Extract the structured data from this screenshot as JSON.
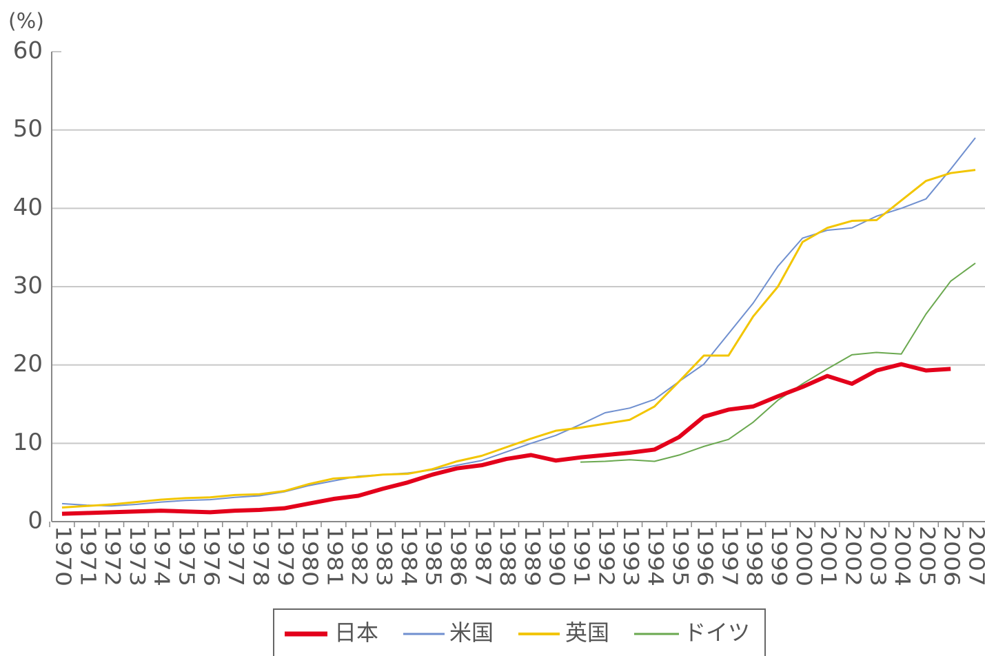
{
  "chart_data": {
    "type": "line",
    "y_label": "(%)",
    "categories": [
      "1970",
      "1971",
      "1972",
      "1973",
      "1974",
      "1975",
      "1976",
      "1977",
      "1978",
      "1979",
      "1980",
      "1981",
      "1982",
      "1983",
      "1984",
      "1985",
      "1986",
      "1987",
      "1988",
      "1989",
      "1990",
      "1991",
      "1992",
      "1993",
      "1994",
      "1995",
      "1996",
      "1997",
      "1998",
      "1999",
      "2000",
      "2001",
      "2002",
      "2003",
      "2004",
      "2005",
      "2006",
      "2007"
    ],
    "series": [
      {
        "name": "日本",
        "color": "#e3001b",
        "width": 6,
        "values": [
          1.0,
          1.1,
          1.2,
          1.3,
          1.4,
          1.3,
          1.2,
          1.4,
          1.5,
          1.7,
          2.3,
          2.9,
          3.3,
          4.2,
          5.0,
          6.0,
          6.8,
          7.2,
          8.0,
          8.5,
          7.8,
          8.2,
          8.5,
          8.8,
          9.2,
          10.8,
          13.4,
          14.3,
          14.7,
          16.0,
          17.2,
          18.6,
          17.6,
          19.3,
          20.1,
          19.3,
          19.5,
          null
        ]
      },
      {
        "name": "米国",
        "color": "#6f8fcf",
        "width": 2,
        "values": [
          2.3,
          2.1,
          2.0,
          2.2,
          2.5,
          2.7,
          2.8,
          3.1,
          3.3,
          3.8,
          4.6,
          5.2,
          5.8,
          6.0,
          6.2,
          6.6,
          7.2,
          7.8,
          8.9,
          10.0,
          11.0,
          12.4,
          13.9,
          14.5,
          15.6,
          17.9,
          20.1,
          24.0,
          27.9,
          32.6,
          36.2,
          37.2,
          37.5,
          39.0,
          40.0,
          41.2,
          45.0,
          49.0
        ]
      },
      {
        "name": "英国",
        "color": "#f2c500",
        "width": 3,
        "values": [
          1.8,
          2.0,
          2.2,
          2.5,
          2.8,
          3.0,
          3.1,
          3.4,
          3.5,
          3.9,
          4.8,
          5.5,
          5.7,
          6.0,
          6.1,
          6.7,
          7.7,
          8.4,
          9.5,
          10.6,
          11.6,
          12.0,
          12.5,
          13.0,
          14.7,
          17.9,
          21.2,
          21.2,
          26.2,
          30.0,
          35.7,
          37.5,
          38.4,
          38.5,
          41.0,
          43.5,
          44.5,
          44.9
        ]
      },
      {
        "name": "ドイツ",
        "color": "#6aa84f",
        "width": 2,
        "values": [
          null,
          null,
          null,
          null,
          null,
          null,
          null,
          null,
          null,
          null,
          null,
          null,
          null,
          null,
          null,
          null,
          null,
          null,
          null,
          null,
          null,
          7.6,
          7.7,
          7.9,
          7.7,
          8.5,
          9.6,
          10.5,
          12.7,
          15.5,
          17.6,
          19.5,
          21.3,
          21.6,
          21.4,
          26.5,
          30.7,
          33.0
        ]
      }
    ],
    "ylim": [
      0,
      60
    ],
    "yticks": [
      0,
      10,
      20,
      30,
      40,
      50,
      60
    ],
    "grid": true
  }
}
